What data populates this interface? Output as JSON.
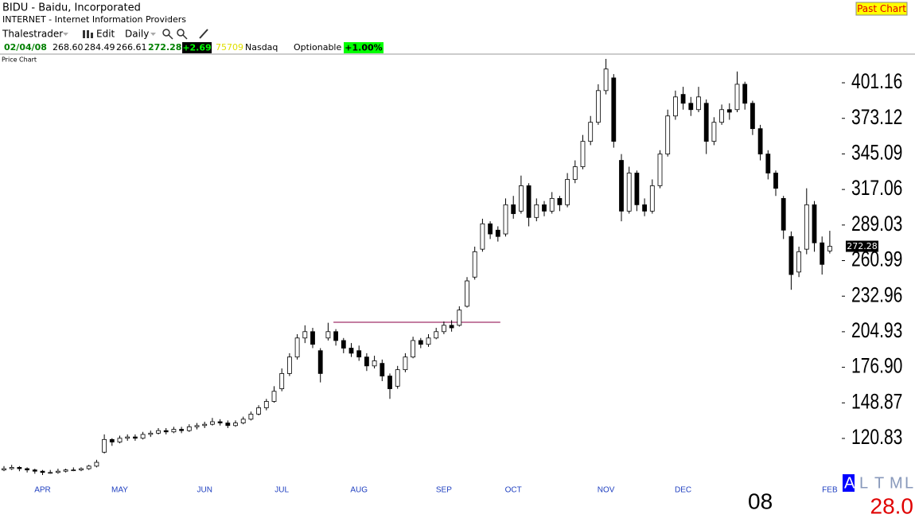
{
  "header": {
    "title": "BIDU - Baidu, Incorporated",
    "industry": "INTERNET - Internet Information Providers",
    "past_chart": "Past Chart",
    "toolbar": [
      "Thalestrader",
      "Edit",
      "Daily"
    ],
    "quote": {
      "date": "02/04/08",
      "open": "268.60",
      "high": "284.49",
      "low": "266.61",
      "last": "272.28",
      "change": "+2.69",
      "volume": "75709",
      "exchange": "Nasdaq",
      "optionable": "Optionable",
      "pct": "+1.00%"
    },
    "panel": "Price Chart"
  },
  "footer": {
    "indicators": [
      "A",
      "L",
      "T",
      "M",
      "L"
    ],
    "value": "28.0"
  },
  "chart_data": {
    "type": "candlestick",
    "categories": [
      null,
      null,
      null,
      null,
      null,
      "APR",
      null,
      null,
      null,
      null,
      null,
      null,
      null,
      null,
      null,
      "MAY",
      null,
      null,
      null,
      null,
      null,
      null,
      null,
      null,
      null,
      null,
      "JUN",
      null,
      null,
      null,
      null,
      null,
      null,
      null,
      null,
      null,
      "JUL",
      null,
      null,
      null,
      null,
      null,
      null,
      null,
      null,
      null,
      "AUG",
      null,
      null,
      null,
      null,
      null,
      null,
      null,
      null,
      null,
      null,
      "SEP",
      null,
      null,
      null,
      null,
      null,
      null,
      null,
      null,
      "OCT",
      null,
      null,
      null,
      null,
      null,
      null,
      null,
      null,
      null,
      null,
      null,
      "NOV",
      null,
      null,
      null,
      null,
      null,
      null,
      null,
      null,
      null,
      "DEC",
      null,
      null,
      null,
      null,
      null,
      null,
      null,
      null,
      null,
      "08",
      null,
      null,
      null,
      null,
      null,
      null,
      null,
      null,
      "FEB"
    ],
    "candles": [
      [
        96,
        99,
        95,
        97
      ],
      [
        97,
        100,
        96,
        98
      ],
      [
        98,
        99,
        95,
        97
      ],
      [
        97,
        98,
        94,
        96
      ],
      [
        96,
        97,
        93,
        95
      ],
      [
        95,
        96,
        92,
        94
      ],
      [
        94,
        96,
        93,
        94
      ],
      [
        94,
        97,
        93,
        95
      ],
      [
        95,
        97,
        94,
        96
      ],
      [
        96,
        98,
        95,
        96
      ],
      [
        96,
        98,
        95,
        97
      ],
      [
        97,
        100,
        96,
        99
      ],
      [
        99,
        104,
        98,
        102
      ],
      [
        110,
        124,
        109,
        120
      ],
      [
        120,
        121,
        115,
        118
      ],
      [
        118,
        123,
        117,
        121
      ],
      [
        121,
        124,
        119,
        122
      ],
      [
        122,
        124,
        119,
        121
      ],
      [
        121,
        126,
        120,
        124
      ],
      [
        124,
        127,
        122,
        125
      ],
      [
        125,
        129,
        124,
        127
      ],
      [
        127,
        129,
        124,
        126
      ],
      [
        126,
        130,
        125,
        128
      ],
      [
        128,
        130,
        125,
        127
      ],
      [
        127,
        132,
        126,
        130
      ],
      [
        130,
        133,
        128,
        131
      ],
      [
        131,
        134,
        129,
        132
      ],
      [
        132,
        137,
        131,
        134
      ],
      [
        134,
        136,
        131,
        133
      ],
      [
        133,
        135,
        129,
        131
      ],
      [
        131,
        135,
        130,
        133
      ],
      [
        133,
        138,
        132,
        136
      ],
      [
        136,
        142,
        135,
        140
      ],
      [
        140,
        147,
        139,
        145
      ],
      [
        145,
        152,
        143,
        150
      ],
      [
        150,
        162,
        149,
        158
      ],
      [
        160,
        176,
        158,
        172
      ],
      [
        172,
        188,
        170,
        185
      ],
      [
        185,
        203,
        183,
        200
      ],
      [
        200,
        210,
        196,
        205
      ],
      [
        205,
        208,
        192,
        195
      ],
      [
        190,
        192,
        165,
        172
      ],
      [
        200,
        212,
        198,
        205
      ],
      [
        205,
        207,
        194,
        198
      ],
      [
        198,
        200,
        188,
        192
      ],
      [
        192,
        196,
        185,
        188
      ],
      [
        190,
        194,
        182,
        185
      ],
      [
        185,
        188,
        174,
        178
      ],
      [
        178,
        186,
        176,
        182
      ],
      [
        180,
        183,
        166,
        170
      ],
      [
        170,
        172,
        152,
        160
      ],
      [
        162,
        178,
        160,
        175
      ],
      [
        175,
        188,
        173,
        185
      ],
      [
        185,
        201,
        184,
        198
      ],
      [
        198,
        200,
        192,
        195
      ],
      [
        195,
        203,
        193,
        200
      ],
      [
        200,
        208,
        199,
        205
      ],
      [
        205,
        213,
        203,
        210
      ],
      [
        210,
        214,
        205,
        208
      ],
      [
        210,
        225,
        209,
        222
      ],
      [
        225,
        248,
        224,
        245
      ],
      [
        248,
        272,
        246,
        268
      ],
      [
        270,
        294,
        268,
        290
      ],
      [
        290,
        292,
        278,
        282
      ],
      [
        285,
        288,
        276,
        280
      ],
      [
        282,
        310,
        280,
        305
      ],
      [
        305,
        312,
        294,
        298
      ],
      [
        300,
        328,
        298,
        320
      ],
      [
        320,
        322,
        288,
        295
      ],
      [
        295,
        310,
        292,
        305
      ],
      [
        305,
        308,
        296,
        300
      ],
      [
        300,
        315,
        298,
        310
      ],
      [
        310,
        312,
        300,
        305
      ],
      [
        305,
        330,
        303,
        325
      ],
      [
        325,
        340,
        322,
        335
      ],
      [
        335,
        360,
        333,
        355
      ],
      [
        355,
        375,
        352,
        370
      ],
      [
        370,
        400,
        368,
        395
      ],
      [
        395,
        420,
        392,
        412
      ],
      [
        405,
        408,
        350,
        355
      ],
      [
        340,
        345,
        292,
        300
      ],
      [
        300,
        335,
        298,
        330
      ],
      [
        330,
        332,
        300,
        305
      ],
      [
        305,
        310,
        296,
        300
      ],
      [
        300,
        325,
        298,
        320
      ],
      [
        320,
        348,
        318,
        345
      ],
      [
        345,
        380,
        343,
        375
      ],
      [
        375,
        395,
        372,
        390
      ],
      [
        392,
        398,
        380,
        385
      ],
      [
        385,
        390,
        375,
        380
      ],
      [
        380,
        398,
        378,
        390
      ],
      [
        385,
        388,
        345,
        355
      ],
      [
        355,
        374,
        352,
        370
      ],
      [
        370,
        384,
        368,
        380
      ],
      [
        380,
        385,
        372,
        378
      ],
      [
        380,
        410,
        378,
        400
      ],
      [
        400,
        402,
        380,
        385
      ],
      [
        385,
        387,
        360,
        365
      ],
      [
        365,
        368,
        340,
        345
      ],
      [
        345,
        348,
        325,
        330
      ],
      [
        330,
        332,
        312,
        318
      ],
      [
        310,
        312,
        278,
        285
      ],
      [
        280,
        284,
        238,
        250
      ],
      [
        252,
        272,
        248,
        268
      ],
      [
        270,
        318,
        266,
        305
      ],
      [
        305,
        308,
        268,
        275
      ],
      [
        275,
        280,
        250,
        258
      ],
      [
        268.6,
        284.49,
        266.61,
        272.28
      ]
    ],
    "ylim": [
      90.1,
      422.5
    ],
    "yticks": [
      120.83,
      148.87,
      {
        "value": 176.9,
        "label": "176.90"
      },
      204.93,
      232.96,
      260.99,
      289.03,
      317.06,
      345.09,
      373.12,
      401.16
    ],
    "hline": {
      "value": 212.4,
      "from": 43,
      "to": 64,
      "color": "#a0306a"
    },
    "up_color": "#ffffff",
    "down_color": "#000000"
  }
}
